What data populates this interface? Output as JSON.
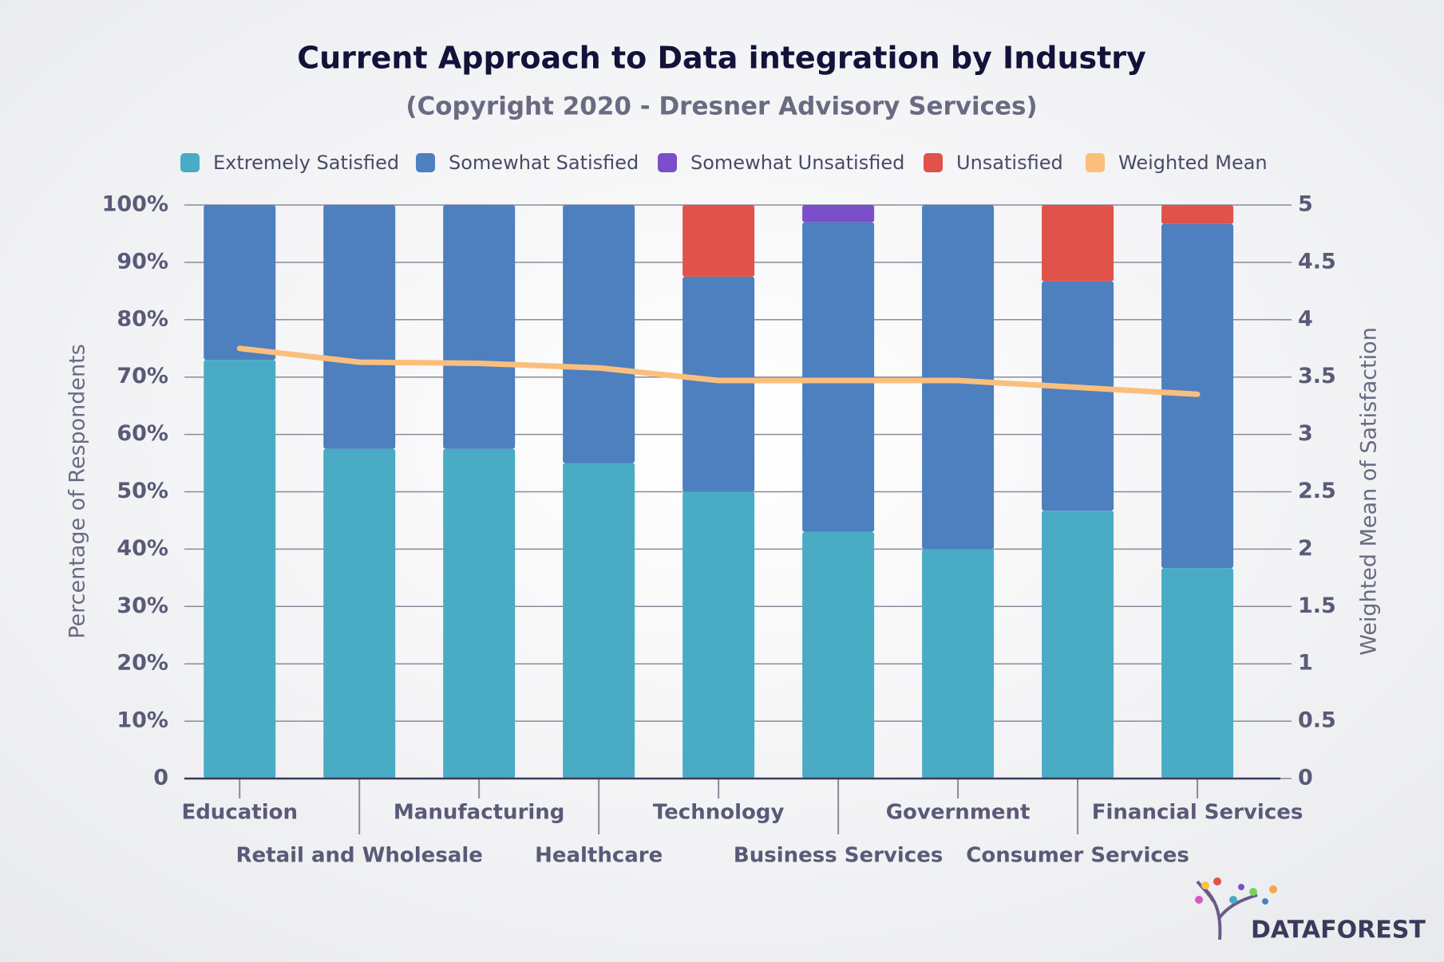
{
  "chart_data": {
    "type": "stacked-bar-line",
    "title": "Current Approach to Data integration by Industry",
    "subtitle": "(Copyright 2020 - Dresner Advisory Services)",
    "y_label": "Percentage of Respondents",
    "y2_label": "Weighted Mean of Satisfaction",
    "categories": [
      "Education",
      "Retail and Wholesale",
      "Manufacturing",
      "Healthcare",
      "Technology",
      "Business Services",
      "Government",
      "Consumer Services",
      "Financial Services"
    ],
    "series": [
      {
        "name": "Extremely Satisfied",
        "color": "#4aabc5",
        "values": [
          73,
          57.5,
          57.5,
          55,
          50,
          43,
          40,
          46.7,
          36.7
        ]
      },
      {
        "name": "Somewhat Satisfied",
        "color": "#4e7fbf",
        "values": [
          27,
          42.5,
          42.5,
          45,
          37.5,
          54,
          60,
          40,
          60
        ]
      },
      {
        "name": "Somewhat Unsatisfied",
        "color": "#7b4fc9",
        "values": [
          0,
          0,
          0,
          0,
          0,
          3,
          0,
          0,
          0
        ]
      },
      {
        "name": "Unsatisfied",
        "color": "#e0524a",
        "values": [
          0,
          0,
          0,
          0,
          12.5,
          0,
          0,
          13.3,
          3.3
        ]
      },
      {
        "name": "Weighted Mean",
        "color": "#fbbf7d",
        "axis": "y2",
        "values": [
          3.75,
          3.63,
          3.62,
          3.58,
          3.47,
          3.47,
          3.47,
          3.41,
          3.35
        ]
      }
    ],
    "ylim": [
      0,
      100
    ],
    "yticks": [
      0,
      {
        "value": 10,
        "label": "10%"
      },
      {
        "value": 20,
        "label": "20%"
      },
      {
        "value": 30,
        "label": "30%"
      },
      {
        "value": 40,
        "label": "40%"
      },
      {
        "value": 50,
        "label": "50%"
      },
      {
        "value": 60,
        "label": "60%"
      },
      {
        "value": 70,
        "label": "70%"
      },
      {
        "value": 80,
        "label": "80%"
      },
      {
        "value": 90,
        "label": "90%"
      },
      {
        "value": 100,
        "label": "100%"
      }
    ],
    "y2lim": [
      0,
      5
    ],
    "y2ticks": [
      0,
      0.5,
      1,
      1.5,
      2,
      2.5,
      3,
      3.5,
      4,
      4.5,
      5
    ],
    "grid": true,
    "legend": "top",
    "logo": "DATAFOREST"
  }
}
